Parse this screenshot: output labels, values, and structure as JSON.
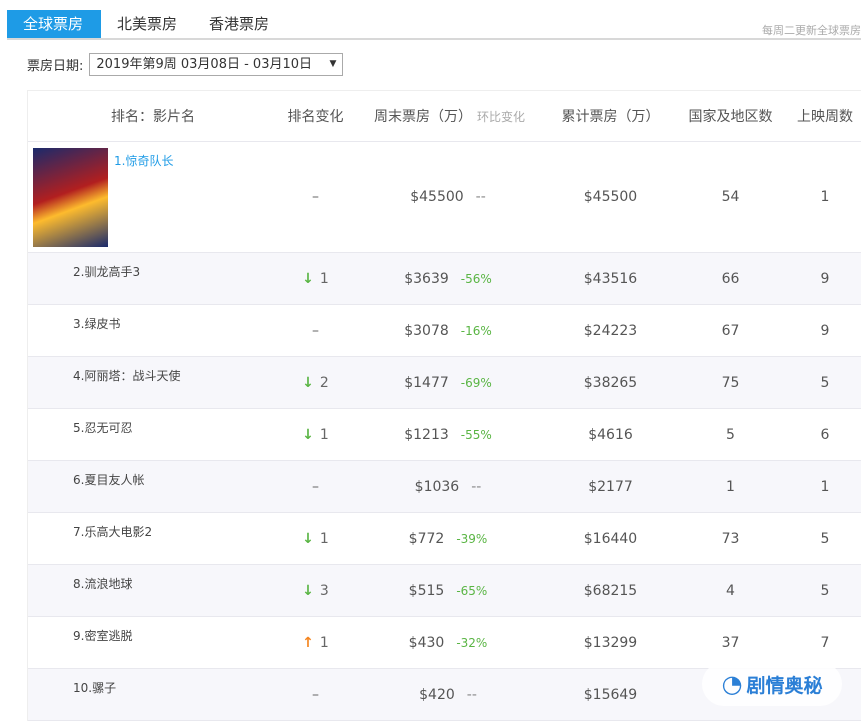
{
  "tabs": [
    "全球票房",
    "北美票房",
    "香港票房"
  ],
  "note": "每周二更新全球票房",
  "date": {
    "label": "票房日期:",
    "value": "2019年第9周 03月08日 - 03月10日"
  },
  "headers": {
    "name": "排名：影片名",
    "change": "排名变化",
    "weekend": "周末票房（万）",
    "wow": "环比变化",
    "total": "累计票房（万）",
    "countries": "国家及地区数",
    "weeks": "上映周数"
  },
  "rows": [
    {
      "name": "1.惊奇队长",
      "change": "–",
      "dir": "",
      "weekend": "$45500",
      "pct": "--",
      "total": "$45500",
      "countries": "54",
      "weeks": "1"
    },
    {
      "name": "2.驯龙高手3",
      "change": "1",
      "dir": "down",
      "weekend": "$3639",
      "pct": "-56%",
      "total": "$43516",
      "countries": "66",
      "weeks": "9"
    },
    {
      "name": "3.绿皮书",
      "change": "–",
      "dir": "",
      "weekend": "$3078",
      "pct": "-16%",
      "total": "$24223",
      "countries": "67",
      "weeks": "9"
    },
    {
      "name": "4.阿丽塔：战斗天使",
      "change": "2",
      "dir": "down",
      "weekend": "$1477",
      "pct": "-69%",
      "total": "$38265",
      "countries": "75",
      "weeks": "5"
    },
    {
      "name": "5.忍无可忍",
      "change": "1",
      "dir": "down",
      "weekend": "$1213",
      "pct": "-55%",
      "total": "$4616",
      "countries": "5",
      "weeks": "6"
    },
    {
      "name": "6.夏目友人帐",
      "change": "–",
      "dir": "",
      "weekend": "$1036",
      "pct": "--",
      "total": "$2177",
      "countries": "1",
      "weeks": "1"
    },
    {
      "name": "7.乐高大电影2",
      "change": "1",
      "dir": "down",
      "weekend": "$772",
      "pct": "-39%",
      "total": "$16440",
      "countries": "73",
      "weeks": "5"
    },
    {
      "name": "8.流浪地球",
      "change": "3",
      "dir": "down",
      "weekend": "$515",
      "pct": "-65%",
      "total": "$68215",
      "countries": "4",
      "weeks": "5"
    },
    {
      "name": "9.密室逃脱",
      "change": "1",
      "dir": "up",
      "weekend": "$430",
      "pct": "-32%",
      "total": "$13299",
      "countries": "37",
      "weeks": "7"
    },
    {
      "name": "10.骡子",
      "change": "–",
      "dir": "",
      "weekend": "$420",
      "pct": "--",
      "total": "$15649",
      "countries": "",
      "weeks": ""
    }
  ],
  "watermark": "剧情奥秘"
}
